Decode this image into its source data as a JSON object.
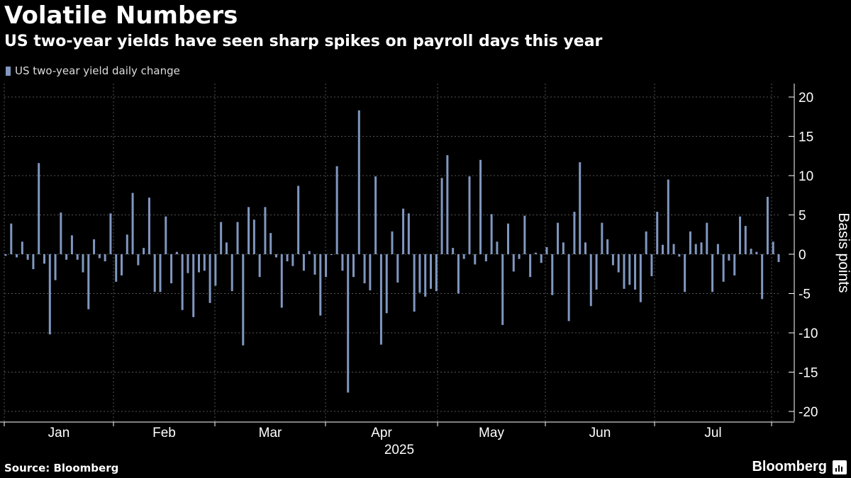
{
  "title": "Volatile Numbers",
  "subtitle": "US two-year yields have seen sharp spikes on payroll days this year",
  "source": "Source: Bloomberg",
  "brand": "Bloomberg",
  "colors": {
    "background": "#000000",
    "bar": "#8097c0",
    "grid": "#555555"
  },
  "chart_data": {
    "type": "bar",
    "title": "Volatile Numbers",
    "subtitle": "US two-year yields have seen sharp spikes on payroll days this year",
    "ylabel": "Basis points",
    "ylim": [
      -20,
      20
    ],
    "yticks": [
      20,
      15,
      10,
      5,
      0,
      -5,
      -10,
      -15,
      -20
    ],
    "xticks": [
      "Jan",
      "Feb",
      "Mar",
      "Apr",
      "May",
      "Jun",
      "Jul"
    ],
    "xlabel": "2025",
    "grid": true,
    "legend_position": "top-left",
    "series": [
      {
        "name": "US two-year yield daily change",
        "values": [
          -0.2,
          3.9,
          -0.4,
          1.6,
          -0.7,
          -1.9,
          11.6,
          -1.2,
          -10.2,
          -3.3,
          5.3,
          -0.7,
          2.4,
          -0.7,
          -2.3,
          -7.0,
          1.9,
          -0.5,
          -0.9,
          5.2,
          -3.5,
          -2.7,
          2.5,
          7.8,
          -1.4,
          0.8,
          7.2,
          -4.8,
          -4.8,
          4.8,
          -3.7,
          0.3,
          -7.1,
          -2.4,
          -8.0,
          -2.3,
          -2.1,
          -6.2,
          -4.0,
          4.1,
          1.5,
          -4.7,
          4.1,
          -11.6,
          6.0,
          4.4,
          -2.9,
          6.0,
          2.7,
          -0.4,
          -6.8,
          -0.9,
          -1.5,
          8.7,
          -2.1,
          0.4,
          -2.6,
          -7.8,
          -2.9,
          -0.1,
          11.2,
          -2.1,
          -17.6,
          -2.9,
          18.3,
          -3.7,
          -4.6,
          9.9,
          -11.5,
          -7.5,
          2.9,
          -3.6,
          5.8,
          5.2,
          -7.3,
          -4.9,
          -5.4,
          -4.4,
          -4.7,
          9.7,
          12.6,
          0.8,
          -5.0,
          -0.6,
          9.9,
          -1.3,
          12.0,
          -0.9,
          5.1,
          1.6,
          -9.0,
          3.9,
          -2.2,
          -0.6,
          4.9,
          -2.9,
          0.2,
          -1.1,
          0.9,
          -5.2,
          4.0,
          1.5,
          -8.5,
          5.4,
          11.7,
          1.5,
          -6.6,
          -4.5,
          4.0,
          1.9,
          -1.4,
          -2.3,
          -4.4,
          -3.9,
          -4.5,
          -6.1,
          2.9,
          -2.8,
          5.4,
          1.2,
          9.5,
          1.3,
          -0.3,
          -4.8,
          2.9,
          1.3,
          1.5,
          4.0,
          -4.8,
          1.3,
          -3.5,
          -0.8,
          -2.7,
          4.8,
          3.6,
          0.7,
          0.3,
          -5.7,
          7.3,
          1.6,
          -1.0
        ]
      }
    ]
  }
}
